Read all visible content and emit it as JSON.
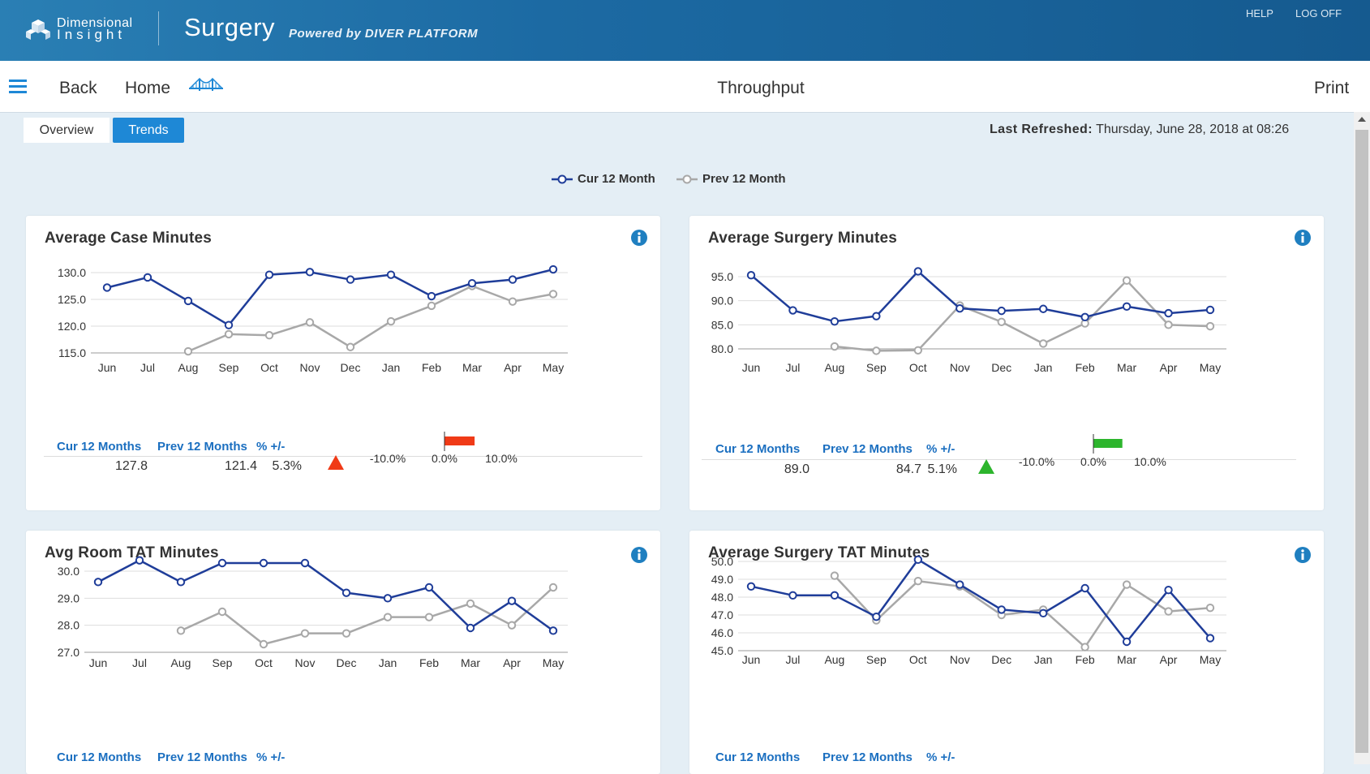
{
  "header": {
    "brand_line1": "Dimensional",
    "brand_line2": "Insight",
    "app_title": "Surgery",
    "powered_by": "Powered by DIVER PLATFORM",
    "help": "HELP",
    "logoff": "LOG OFF"
  },
  "nav": {
    "back": "Back",
    "home": "Home",
    "title": "Throughput",
    "print": "Print"
  },
  "tabs": [
    {
      "label": "Overview",
      "active": false
    },
    {
      "label": "Trends",
      "active": true
    }
  ],
  "last_refreshed": {
    "label": "Last Refreshed:",
    "value": "Thursday, June 28, 2018 at 08:26"
  },
  "legend": {
    "cur": "Cur 12 Month",
    "prev": "Prev 12 Month"
  },
  "colors": {
    "cur": "#1f3d99",
    "prev": "#a8a8a8",
    "stat_header": "#1b6fc0",
    "up_bad": "#f03a17",
    "up_good": "#2db52d",
    "tab_active": "#1e88d6"
  },
  "stats_headers": {
    "cur": "Cur 12 Months",
    "prev": "Prev 12 Months",
    "pct": "% +/-"
  },
  "chart_data": [
    {
      "type": "line",
      "title": "Average Case Minutes",
      "categories": [
        "Jun",
        "Jul",
        "Aug",
        "Sep",
        "Oct",
        "Nov",
        "Dec",
        "Jan",
        "Feb",
        "Mar",
        "Apr",
        "May"
      ],
      "yticks": [
        "115.0",
        "120.0",
        "125.0",
        "130.0"
      ],
      "ylim": [
        115,
        130
      ],
      "series": [
        {
          "name": "Cur 12 Month",
          "values": [
            127.2,
            129.1,
            124.7,
            120.2,
            129.6,
            130.1,
            128.7,
            129.6,
            125.6,
            128.0,
            128.7,
            130.6
          ]
        },
        {
          "name": "Prev 12 Month",
          "values": [
            null,
            null,
            115.3,
            118.5,
            118.3,
            120.7,
            116.1,
            120.9,
            123.8,
            127.5,
            124.6,
            126.0
          ]
        }
      ],
      "stats": {
        "cur": "127.8",
        "prev": "121.4",
        "pct": "5.3%",
        "direction": "up",
        "status": "bad",
        "pct_value": 5.3,
        "scale": [
          "-10.0%",
          "0.0%",
          "10.0%"
        ]
      }
    },
    {
      "type": "line",
      "title": "Average Surgery Minutes",
      "categories": [
        "Jun",
        "Jul",
        "Aug",
        "Sep",
        "Oct",
        "Nov",
        "Dec",
        "Jan",
        "Feb",
        "Mar",
        "Apr",
        "May"
      ],
      "yticks": [
        "80.0",
        "85.0",
        "90.0",
        "95.0"
      ],
      "ylim": [
        80,
        95
      ],
      "series": [
        {
          "name": "Cur 12 Month",
          "values": [
            95.3,
            88.0,
            85.7,
            86.8,
            96.1,
            88.4,
            87.9,
            88.3,
            86.6,
            88.8,
            87.4,
            88.1
          ]
        },
        {
          "name": "Prev 12 Month",
          "values": [
            null,
            null,
            80.5,
            79.6,
            79.7,
            89.0,
            85.6,
            81.1,
            85.3,
            94.2,
            85.0,
            84.7
          ]
        }
      ],
      "stats": {
        "cur": "89.0",
        "prev": "84.7",
        "pct": "5.1%",
        "direction": "up",
        "status": "good",
        "pct_value": 5.1,
        "scale": [
          "-10.0%",
          "0.0%",
          "10.0%"
        ]
      }
    },
    {
      "type": "line",
      "title": "Avg Room TAT Minutes",
      "categories": [
        "Jun",
        "Jul",
        "Aug",
        "Sep",
        "Oct",
        "Nov",
        "Dec",
        "Jan",
        "Feb",
        "Mar",
        "Apr",
        "May"
      ],
      "yticks": [
        "27.0",
        "28.0",
        "29.0",
        "30.0"
      ],
      "ylim": [
        27,
        30
      ],
      "series": [
        {
          "name": "Cur 12 Month",
          "values": [
            29.6,
            30.4,
            29.6,
            30.3,
            30.3,
            30.3,
            29.2,
            29.0,
            29.4,
            27.9,
            28.9,
            27.8
          ]
        },
        {
          "name": "Prev 12 Month",
          "values": [
            null,
            null,
            27.8,
            28.5,
            27.3,
            27.7,
            27.7,
            28.3,
            28.3,
            28.8,
            28.0,
            29.4
          ]
        }
      ],
      "stats": null
    },
    {
      "type": "line",
      "title": "Average Surgery  TAT Minutes",
      "categories": [
        "Jun",
        "Jul",
        "Aug",
        "Sep",
        "Oct",
        "Nov",
        "Dec",
        "Jan",
        "Feb",
        "Mar",
        "Apr",
        "May"
      ],
      "yticks": [
        "45.0",
        "46.0",
        "47.0",
        "48.0",
        "49.0",
        "50.0"
      ],
      "ylim": [
        45,
        50
      ],
      "series": [
        {
          "name": "Cur 12 Month",
          "values": [
            48.6,
            48.1,
            48.1,
            46.9,
            50.1,
            48.7,
            47.3,
            47.1,
            48.5,
            45.5,
            48.4,
            45.7
          ]
        },
        {
          "name": "Prev 12 Month",
          "values": [
            null,
            null,
            49.2,
            46.7,
            48.9,
            48.6,
            47.0,
            47.3,
            45.2,
            48.7,
            47.2,
            47.4
          ]
        }
      ],
      "stats": null
    }
  ]
}
